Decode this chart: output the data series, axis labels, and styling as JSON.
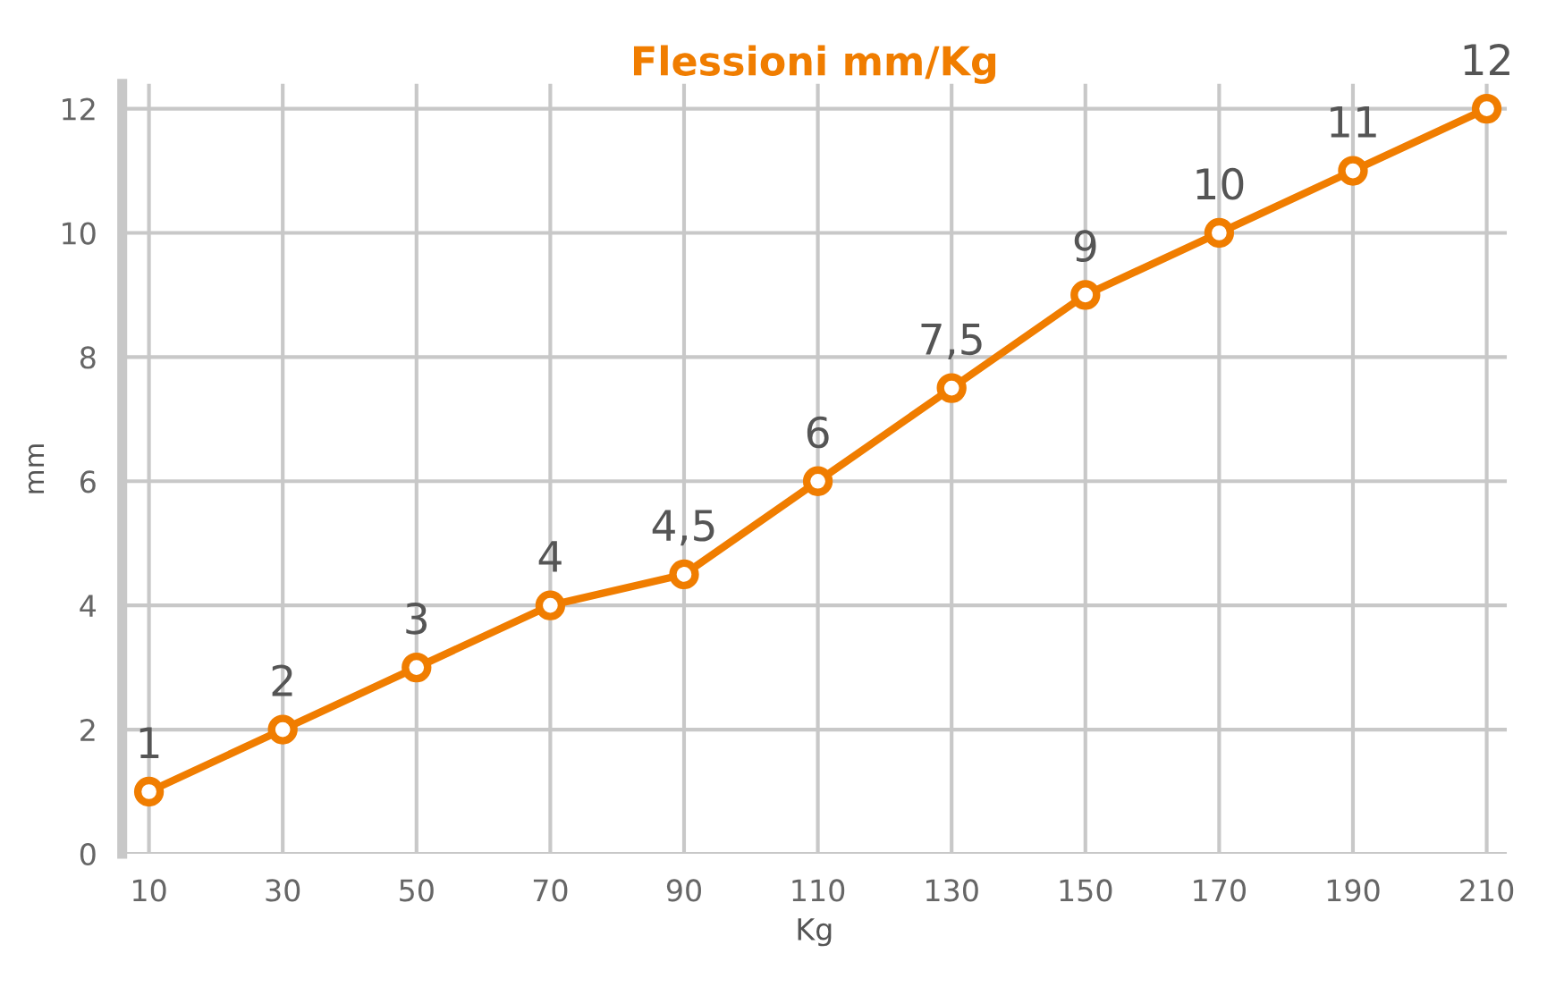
{
  "chart_data": {
    "type": "line",
    "title": "Flessioni mm/Kg",
    "xlabel": "Kg",
    "ylabel": "mm",
    "x": [
      10,
      30,
      50,
      70,
      90,
      110,
      130,
      150,
      170,
      190,
      210
    ],
    "series": [
      {
        "color": "#f07d00",
        "values": [
          1,
          2,
          3,
          4,
          4.5,
          6,
          7.5,
          9,
          10,
          11,
          12
        ]
      }
    ],
    "value_labels": [
      "1",
      "2",
      "3",
      "4",
      "4,5",
      "6",
      "7,5",
      "9",
      "10",
      "11",
      "12"
    ],
    "xlim": [
      6,
      213
    ],
    "ylim": [
      0,
      12.4
    ],
    "xticks": [
      10,
      30,
      50,
      70,
      90,
      110,
      130,
      150,
      170,
      190,
      210
    ],
    "yticks": [
      0,
      2,
      4,
      6,
      8,
      10,
      12
    ],
    "grid": true,
    "marker": "circle",
    "line_style": "solid"
  }
}
